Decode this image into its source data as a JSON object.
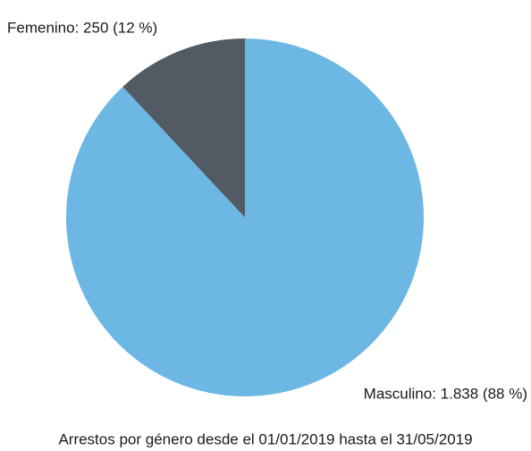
{
  "chart_data": {
    "type": "pie",
    "title": "Arrestos por género desde el 01/01/2019 hasta el 31/05/2019",
    "values": [
      1838,
      250
    ],
    "value_labels": [
      "Masculino: 1.838 (88 %)",
      "Femenino: 250 (12 %)"
    ],
    "colors": [
      "#6cb7e4",
      "#525a64"
    ]
  }
}
